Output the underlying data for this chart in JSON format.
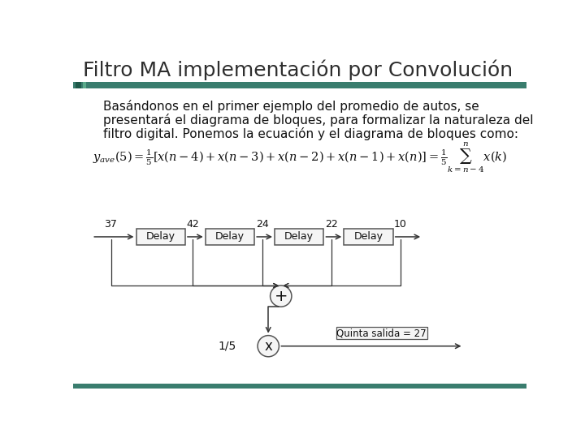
{
  "title": "Filtro MA implementación por Convolución",
  "title_color": "#2E2E2E",
  "bar_color": "#3A7D6E",
  "bg_color": "#FFFFFF",
  "body_line1": "Basándonos en el primer ejemplo del promedio de autos, se",
  "body_line2": "presentará el diagrama de bloques, para formalizar la naturaleza del",
  "body_line3": "filtro digital. Ponemos la ecuación y el diagrama de bloques como:",
  "signal_values": [
    "37",
    "42",
    "24",
    "22",
    "10"
  ],
  "box_color": "#F5F5F5",
  "box_edge_color": "#555555",
  "arrow_color": "#333333",
  "text_color": "#111111",
  "quinta_salida": "Quinta salida = 27",
  "mult_label": "1/5",
  "adder_label": "+",
  "mult_label2": "x"
}
